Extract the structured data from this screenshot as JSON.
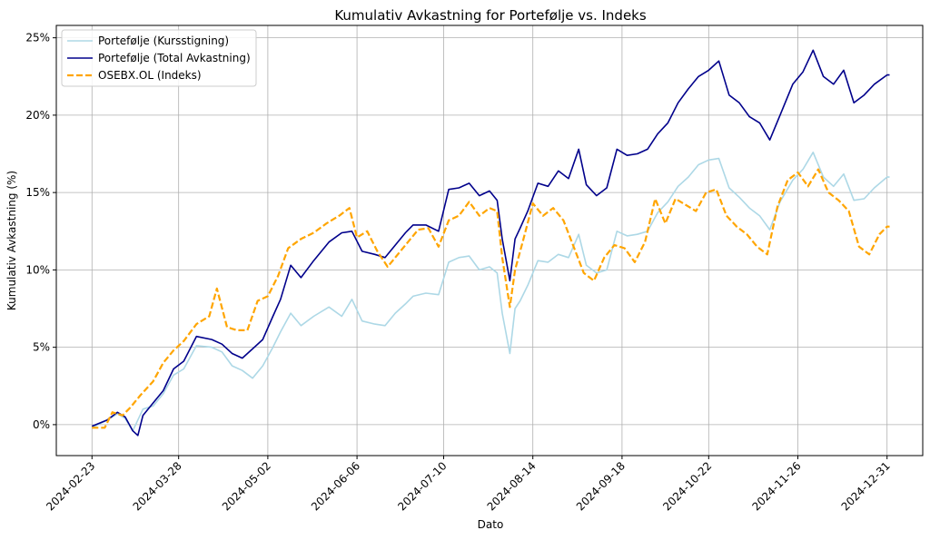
{
  "chart_data": {
    "type": "line",
    "title": "Kumulativ Avkastning for Portefølje vs. Indeks",
    "xlabel": "Dato",
    "ylabel": "Kumulativ Avkastning (%)",
    "x_ticks": [
      "2024-02-23",
      "2024-03-28",
      "2024-05-02",
      "2024-06-06",
      "2024-07-10",
      "2024-08-14",
      "2024-09-18",
      "2024-10-22",
      "2024-11-26",
      "2024-12-31"
    ],
    "y_ticks": [
      "0%",
      "5%",
      "10%",
      "15%",
      "20%",
      "25%"
    ],
    "ylim": [
      -2,
      25.8
    ],
    "xlim": [
      "2024-02-09",
      "2025-01-14"
    ],
    "grid": true,
    "legend_position": "top-left",
    "series": [
      {
        "name": "Portefølje (Kursstigning)",
        "color": "#add8e6",
        "style": "solid",
        "points": [
          [
            "2024-02-23",
            -0.2
          ],
          [
            "2024-02-29",
            0.3
          ],
          [
            "2024-03-04",
            0.7
          ],
          [
            "2024-03-07",
            0.4
          ],
          [
            "2024-03-10",
            -0.4
          ],
          [
            "2024-03-14",
            1.0
          ],
          [
            "2024-03-18",
            1.2
          ],
          [
            "2024-03-22",
            2.0
          ],
          [
            "2024-03-26",
            3.2
          ],
          [
            "2024-03-30",
            3.6
          ],
          [
            "2024-04-04",
            5.1
          ],
          [
            "2024-04-10",
            5.0
          ],
          [
            "2024-04-14",
            4.7
          ],
          [
            "2024-04-18",
            3.8
          ],
          [
            "2024-04-22",
            3.5
          ],
          [
            "2024-04-26",
            3.0
          ],
          [
            "2024-04-30",
            3.8
          ],
          [
            "2024-05-04",
            5.0
          ],
          [
            "2024-05-07",
            6.0
          ],
          [
            "2024-05-11",
            7.2
          ],
          [
            "2024-05-15",
            6.4
          ],
          [
            "2024-05-20",
            7.0
          ],
          [
            "2024-05-26",
            7.6
          ],
          [
            "2024-05-31",
            7.0
          ],
          [
            "2024-06-04",
            8.1
          ],
          [
            "2024-06-08",
            6.7
          ],
          [
            "2024-06-13",
            6.5
          ],
          [
            "2024-06-17",
            6.4
          ],
          [
            "2024-06-21",
            7.2
          ],
          [
            "2024-06-25",
            7.8
          ],
          [
            "2024-06-28",
            8.3
          ],
          [
            "2024-07-03",
            8.5
          ],
          [
            "2024-07-08",
            8.4
          ],
          [
            "2024-07-12",
            10.5
          ],
          [
            "2024-07-16",
            10.8
          ],
          [
            "2024-07-20",
            10.9
          ],
          [
            "2024-07-24",
            10.0
          ],
          [
            "2024-07-28",
            10.2
          ],
          [
            "2024-07-31",
            9.8
          ],
          [
            "2024-08-02",
            7.2
          ],
          [
            "2024-08-05",
            4.6
          ],
          [
            "2024-08-07",
            7.5
          ],
          [
            "2024-08-09",
            8.0
          ],
          [
            "2024-08-12",
            9.0
          ],
          [
            "2024-08-16",
            10.6
          ],
          [
            "2024-08-20",
            10.5
          ],
          [
            "2024-08-24",
            11.0
          ],
          [
            "2024-08-28",
            10.8
          ],
          [
            "2024-09-01",
            12.3
          ],
          [
            "2024-09-04",
            10.3
          ],
          [
            "2024-09-08",
            9.8
          ],
          [
            "2024-09-12",
            10.0
          ],
          [
            "2024-09-16",
            12.5
          ],
          [
            "2024-09-20",
            12.2
          ],
          [
            "2024-09-24",
            12.3
          ],
          [
            "2024-09-28",
            12.5
          ],
          [
            "2024-10-02",
            13.7
          ],
          [
            "2024-10-06",
            14.4
          ],
          [
            "2024-10-10",
            15.4
          ],
          [
            "2024-10-14",
            16.0
          ],
          [
            "2024-10-18",
            16.8
          ],
          [
            "2024-10-22",
            17.1
          ],
          [
            "2024-10-26",
            17.2
          ],
          [
            "2024-10-30",
            15.3
          ],
          [
            "2024-11-03",
            14.7
          ],
          [
            "2024-11-07",
            14.0
          ],
          [
            "2024-11-11",
            13.5
          ],
          [
            "2024-11-15",
            12.6
          ],
          [
            "2024-11-19",
            14.4
          ],
          [
            "2024-11-24",
            15.8
          ],
          [
            "2024-11-28",
            16.5
          ],
          [
            "2024-12-02",
            17.6
          ],
          [
            "2024-12-06",
            16.0
          ],
          [
            "2024-12-10",
            15.4
          ],
          [
            "2024-12-14",
            16.2
          ],
          [
            "2024-12-18",
            14.5
          ],
          [
            "2024-12-22",
            14.6
          ],
          [
            "2024-12-26",
            15.3
          ],
          [
            "2024-12-31",
            16.0
          ],
          [
            "2025-01-01",
            16.0
          ]
        ]
      },
      {
        "name": "Portefølje (Total Avkastning)",
        "color": "#00008b",
        "style": "solid",
        "points": [
          [
            "2024-02-23",
            -0.1
          ],
          [
            "2024-02-29",
            0.3
          ],
          [
            "2024-03-04",
            0.8
          ],
          [
            "2024-03-07",
            0.5
          ],
          [
            "2024-03-10",
            -0.4
          ],
          [
            "2024-03-12",
            -0.7
          ],
          [
            "2024-03-14",
            0.6
          ],
          [
            "2024-03-18",
            1.4
          ],
          [
            "2024-03-22",
            2.2
          ],
          [
            "2024-03-26",
            3.6
          ],
          [
            "2024-03-30",
            4.1
          ],
          [
            "2024-04-04",
            5.7
          ],
          [
            "2024-04-10",
            5.5
          ],
          [
            "2024-04-14",
            5.2
          ],
          [
            "2024-04-18",
            4.6
          ],
          [
            "2024-04-22",
            4.3
          ],
          [
            "2024-04-26",
            4.9
          ],
          [
            "2024-04-30",
            5.5
          ],
          [
            "2024-05-04",
            7.0
          ],
          [
            "2024-05-07",
            8.1
          ],
          [
            "2024-05-11",
            10.3
          ],
          [
            "2024-05-15",
            9.5
          ],
          [
            "2024-05-20",
            10.6
          ],
          [
            "2024-05-26",
            11.8
          ],
          [
            "2024-05-31",
            12.4
          ],
          [
            "2024-06-04",
            12.5
          ],
          [
            "2024-06-08",
            11.2
          ],
          [
            "2024-06-13",
            11.0
          ],
          [
            "2024-06-17",
            10.8
          ],
          [
            "2024-06-21",
            11.6
          ],
          [
            "2024-06-25",
            12.4
          ],
          [
            "2024-06-28",
            12.9
          ],
          [
            "2024-07-03",
            12.9
          ],
          [
            "2024-07-08",
            12.5
          ],
          [
            "2024-07-12",
            15.2
          ],
          [
            "2024-07-16",
            15.3
          ],
          [
            "2024-07-20",
            15.6
          ],
          [
            "2024-07-24",
            14.8
          ],
          [
            "2024-07-28",
            15.1
          ],
          [
            "2024-07-31",
            14.5
          ],
          [
            "2024-08-02",
            12.0
          ],
          [
            "2024-08-05",
            9.3
          ],
          [
            "2024-08-07",
            12.0
          ],
          [
            "2024-08-09",
            12.7
          ],
          [
            "2024-08-12",
            13.8
          ],
          [
            "2024-08-16",
            15.6
          ],
          [
            "2024-08-20",
            15.4
          ],
          [
            "2024-08-24",
            16.4
          ],
          [
            "2024-08-28",
            15.9
          ],
          [
            "2024-09-01",
            17.8
          ],
          [
            "2024-09-04",
            15.5
          ],
          [
            "2024-09-08",
            14.8
          ],
          [
            "2024-09-12",
            15.3
          ],
          [
            "2024-09-16",
            17.8
          ],
          [
            "2024-09-20",
            17.4
          ],
          [
            "2024-09-24",
            17.5
          ],
          [
            "2024-09-28",
            17.8
          ],
          [
            "2024-10-02",
            18.8
          ],
          [
            "2024-10-06",
            19.5
          ],
          [
            "2024-10-10",
            20.8
          ],
          [
            "2024-10-14",
            21.7
          ],
          [
            "2024-10-18",
            22.5
          ],
          [
            "2024-10-22",
            22.9
          ],
          [
            "2024-10-26",
            23.5
          ],
          [
            "2024-10-30",
            21.3
          ],
          [
            "2024-11-03",
            20.8
          ],
          [
            "2024-11-07",
            19.9
          ],
          [
            "2024-11-11",
            19.5
          ],
          [
            "2024-11-15",
            18.4
          ],
          [
            "2024-11-19",
            20.0
          ],
          [
            "2024-11-24",
            22.0
          ],
          [
            "2024-11-28",
            22.8
          ],
          [
            "2024-12-02",
            24.2
          ],
          [
            "2024-12-06",
            22.5
          ],
          [
            "2024-12-10",
            22.0
          ],
          [
            "2024-12-14",
            22.9
          ],
          [
            "2024-12-18",
            20.8
          ],
          [
            "2024-12-22",
            21.3
          ],
          [
            "2024-12-26",
            22.0
          ],
          [
            "2024-12-31",
            22.6
          ],
          [
            "2025-01-01",
            22.6
          ]
        ]
      },
      {
        "name": "OSEBX.OL (Indeks)",
        "color": "#ffa500",
        "style": "dashed",
        "points": [
          [
            "2024-02-23",
            -0.2
          ],
          [
            "2024-02-28",
            -0.2
          ],
          [
            "2024-03-02",
            0.8
          ],
          [
            "2024-03-06",
            0.6
          ],
          [
            "2024-03-09",
            1.1
          ],
          [
            "2024-03-13",
            1.9
          ],
          [
            "2024-03-18",
            2.8
          ],
          [
            "2024-03-22",
            4.0
          ],
          [
            "2024-03-26",
            4.8
          ],
          [
            "2024-03-30",
            5.4
          ],
          [
            "2024-04-04",
            6.5
          ],
          [
            "2024-04-09",
            7.0
          ],
          [
            "2024-04-12",
            8.8
          ],
          [
            "2024-04-16",
            6.3
          ],
          [
            "2024-04-20",
            6.1
          ],
          [
            "2024-04-24",
            6.1
          ],
          [
            "2024-04-28",
            8.0
          ],
          [
            "2024-05-02",
            8.3
          ],
          [
            "2024-05-06",
            9.6
          ],
          [
            "2024-05-10",
            11.4
          ],
          [
            "2024-05-15",
            12.0
          ],
          [
            "2024-05-20",
            12.4
          ],
          [
            "2024-05-25",
            13.0
          ],
          [
            "2024-05-30",
            13.5
          ],
          [
            "2024-06-03",
            14.0
          ],
          [
            "2024-06-06",
            12.1
          ],
          [
            "2024-06-10",
            12.5
          ],
          [
            "2024-06-14",
            11.2
          ],
          [
            "2024-06-18",
            10.2
          ],
          [
            "2024-06-22",
            11.0
          ],
          [
            "2024-06-26",
            11.8
          ],
          [
            "2024-06-30",
            12.6
          ],
          [
            "2024-07-04",
            12.7
          ],
          [
            "2024-07-08",
            11.5
          ],
          [
            "2024-07-12",
            13.2
          ],
          [
            "2024-07-16",
            13.5
          ],
          [
            "2024-07-20",
            14.4
          ],
          [
            "2024-07-24",
            13.5
          ],
          [
            "2024-07-28",
            14.0
          ],
          [
            "2024-07-31",
            13.8
          ],
          [
            "2024-08-02",
            10.8
          ],
          [
            "2024-08-05",
            7.6
          ],
          [
            "2024-08-07",
            10.0
          ],
          [
            "2024-08-10",
            11.8
          ],
          [
            "2024-08-14",
            14.3
          ],
          [
            "2024-08-18",
            13.5
          ],
          [
            "2024-08-22",
            14.0
          ],
          [
            "2024-08-26",
            13.2
          ],
          [
            "2024-08-30",
            11.5
          ],
          [
            "2024-09-03",
            9.8
          ],
          [
            "2024-09-07",
            9.3
          ],
          [
            "2024-09-11",
            10.8
          ],
          [
            "2024-09-15",
            11.6
          ],
          [
            "2024-09-19",
            11.4
          ],
          [
            "2024-09-23",
            10.5
          ],
          [
            "2024-09-27",
            11.8
          ],
          [
            "2024-10-01",
            14.6
          ],
          [
            "2024-10-05",
            13.0
          ],
          [
            "2024-10-09",
            14.6
          ],
          [
            "2024-10-13",
            14.2
          ],
          [
            "2024-10-17",
            13.8
          ],
          [
            "2024-10-21",
            15.0
          ],
          [
            "2024-10-25",
            15.2
          ],
          [
            "2024-10-29",
            13.5
          ],
          [
            "2024-11-02",
            12.8
          ],
          [
            "2024-11-06",
            12.3
          ],
          [
            "2024-11-10",
            11.5
          ],
          [
            "2024-11-14",
            11.0
          ],
          [
            "2024-11-18",
            14.1
          ],
          [
            "2024-11-22",
            15.8
          ],
          [
            "2024-11-26",
            16.3
          ],
          [
            "2024-11-30",
            15.4
          ],
          [
            "2024-12-04",
            16.5
          ],
          [
            "2024-12-08",
            15.0
          ],
          [
            "2024-12-12",
            14.5
          ],
          [
            "2024-12-16",
            13.8
          ],
          [
            "2024-12-20",
            11.5
          ],
          [
            "2024-12-24",
            11.0
          ],
          [
            "2024-12-28",
            12.3
          ],
          [
            "2024-12-31",
            12.8
          ],
          [
            "2025-01-01",
            12.8
          ]
        ]
      }
    ]
  }
}
